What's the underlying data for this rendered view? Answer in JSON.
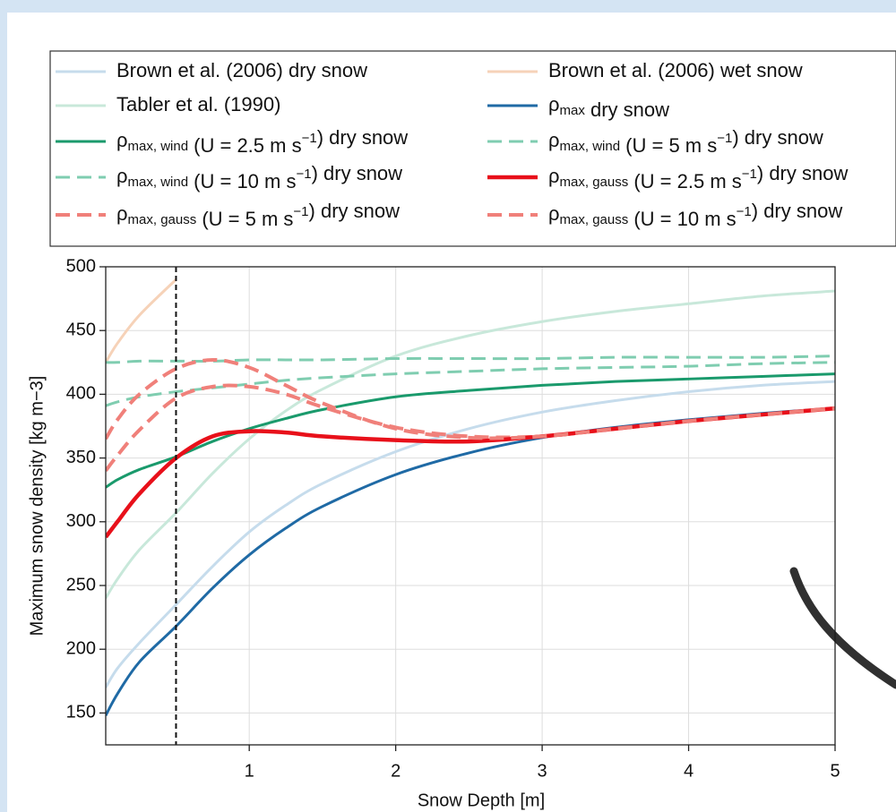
{
  "chart_data": {
    "type": "line",
    "xlabel": "Snow Depth [m]",
    "ylabel": "Maximum snow density [kg m−3]",
    "x": [
      0.02,
      0.1,
      0.25,
      0.5,
      0.75,
      1,
      1.25,
      1.5,
      2,
      2.5,
      3,
      3.5,
      4,
      4.5,
      5
    ],
    "xlim": [
      0.02,
      5
    ],
    "xticks": [
      1,
      2,
      3,
      4,
      5
    ],
    "ylim": [
      125,
      500
    ],
    "yticks": [
      150,
      200,
      250,
      300,
      350,
      400,
      450,
      500
    ],
    "grid": true,
    "vline": 0.5,
    "series": [
      {
        "name": "Brown et al. (2006) dry snow",
        "color": "#c6dcec",
        "linestyle": "solid",
        "linewidth": 3,
        "values": [
          170,
          185,
          205,
          235,
          265,
          292,
          313,
          330,
          355,
          373,
          386,
          395,
          402,
          407,
          410
        ]
      },
      {
        "name": "Tabler et al. (1990)",
        "color": "#c8e8da",
        "linestyle": "solid",
        "linewidth": 3,
        "values": [
          240,
          255,
          278,
          307,
          338,
          365,
          387,
          404,
          430,
          446,
          457,
          465,
          471,
          477,
          481
        ]
      },
      {
        "name": "ρmax, wind (U = 2.5 m s−1) dry snow",
        "color": "#1a9a6c",
        "linestyle": "solid",
        "linewidth": 3,
        "values": [
          327,
          333,
          341,
          351,
          363,
          373,
          381,
          388,
          398,
          403,
          407,
          410,
          412,
          414,
          416
        ]
      },
      {
        "name": "ρmax, wind (U = 10 m s−1) dry snow",
        "color": "#7fcdb0",
        "linestyle": "dashed",
        "linewidth": 3,
        "values": [
          391,
          394,
          398,
          402,
          405,
          408,
          411,
          413,
          416,
          418,
          420,
          421,
          422,
          424,
          425
        ]
      },
      {
        "name": "ρmax, gauss (U = 5 m s−1) dry snow",
        "color": "#f0807a",
        "linestyle": "dashed",
        "linewidth": 4,
        "values": [
          340,
          352,
          372,
          397,
          406,
          406,
          400,
          390,
          374,
          367,
          367,
          373,
          379,
          384,
          389
        ]
      },
      {
        "name": "Brown et al. (2006) wet snow",
        "color": "#f6d2b8",
        "linestyle": "solid",
        "linewidth": 3,
        "values": [
          425,
          440,
          462,
          490,
          null,
          null,
          null,
          null,
          null,
          null,
          null,
          null,
          null,
          null,
          null
        ]
      },
      {
        "name": "ρmax dry snow",
        "color": "#1f6aa5",
        "linestyle": "solid",
        "linewidth": 3,
        "values": [
          148,
          165,
          190,
          218,
          248,
          274,
          295,
          312,
          337,
          354,
          366,
          374,
          380,
          385,
          389
        ]
      },
      {
        "name": "ρmax, wind (U = 5 m s−1) dry snow",
        "color": "#7fcdb0",
        "linestyle": "dashed",
        "linewidth": 3,
        "values": [
          425,
          425,
          426,
          426,
          426,
          427,
          427,
          427,
          428,
          428,
          428,
          429,
          429,
          429,
          430
        ]
      },
      {
        "name": "ρmax, gauss (U = 2.5 m s−1) dry snow",
        "color": "#e8101a",
        "linestyle": "solid",
        "linewidth": 4.5,
        "values": [
          288,
          300,
          322,
          350,
          367,
          371,
          370,
          367,
          364,
          363,
          367,
          373,
          379,
          384,
          389
        ]
      },
      {
        "name": "ρmax, gauss (U = 10 m s−1) dry snow",
        "color": "#f0807a",
        "linestyle": "dashed",
        "linewidth": 4,
        "values": [
          365,
          380,
          400,
          420,
          427,
          421,
          407,
          393,
          373,
          366,
          367,
          373,
          379,
          384,
          389
        ]
      }
    ]
  }
}
